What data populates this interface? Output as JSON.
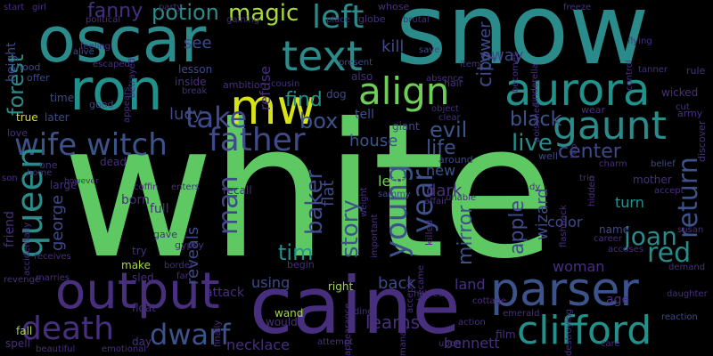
{
  "words": {
    "white": "white",
    "snow": "snow",
    "oscar": "oscar",
    "caine": "caine",
    "output": "output",
    "parser": "parser",
    "ron": "ron",
    "aurora": "aurora",
    "clifford": "clifford",
    "text": "text",
    "mw": "mw",
    "align": "align",
    "gaunt": "gaunt",
    "father": "father",
    "queen": "queen",
    "wife_witch": "wife witch",
    "death": "death",
    "dwarf": "dwarf",
    "young": "young",
    "year": "year",
    "left": "left",
    "take": "take",
    "magic": "magic",
    "fanny": "fanny",
    "potion": "potion",
    "forest": "forest",
    "baker": "baker",
    "story": "story",
    "return": "return",
    "red": "red",
    "mirror": "mirror",
    "joan": "joan",
    "tim": "tim",
    "man": "man",
    "george": "george",
    "evil": "evil",
    "black": "black",
    "life": "life",
    "live": "live",
    "center": "center",
    "apple": "apple",
    "wizard": "wizard",
    "city": "city",
    "box": "box",
    "find": "find",
    "tell": "tell",
    "kill": "kill",
    "power": "power",
    "away": "away",
    "see": "see",
    "lucy": "lucy",
    "house": "house",
    "reveals": "reveals",
    "using": "using",
    "back": "back",
    "learns": "learns",
    "bennett": "bennett",
    "necklace": "necklace",
    "woman": "woman",
    "color": "color",
    "turn": "turn",
    "land": "land",
    "leaf": "leaf",
    "dark": "dark",
    "new": "new",
    "flat": "flat",
    "friend": "friend",
    "height": "height",
    "refuse": "refuse",
    "lesson": "lesson",
    "ambition": "ambition",
    "inside": "inside",
    "also": "also",
    "cinderella": "cinderella",
    "wicked": "wicked",
    "discover": "discover",
    "mother": "mother",
    "name": "name",
    "age": "age",
    "film": "film",
    "riding": "riding",
    "attack": "attack",
    "begin": "begin",
    "born": "born",
    "full": "full",
    "large": "large",
    "dead": "dead",
    "try": "try",
    "make": "make",
    "sled": "sled",
    "wand": "wand",
    "would": "would",
    "right": "right",
    "fall": "fall",
    "spell": "spell",
    "day": "day",
    "float": "float",
    "gypsy": "gypsy",
    "gave": "gave",
    "later": "later",
    "true": "true",
    "good": "good",
    "love": "love",
    "time": "time",
    "hood": "hood",
    "offer": "offer",
    "alive": "alive",
    "escaped": "escaped",
    "betrayed": "betrayed",
    "break": "break",
    "recall": "recall",
    "dog": "dog",
    "giant": "giant",
    "killed": "killed",
    "became": "became",
    "around": "around",
    "well": "well",
    "wear": "wear",
    "army": "army",
    "rule": "rule",
    "tanner": "tanner",
    "control": "control",
    "flying": "flying",
    "freeze": "freeze",
    "item": "item",
    "hair": "hair",
    "absence": "absence",
    "save": "save",
    "globe": "globe",
    "place": "place",
    "gaining": "gaining",
    "whose": "whose",
    "brutal": "brutal",
    "party": "party",
    "political": "political",
    "girl": "girl",
    "start": "start",
    "feeling": "feeling",
    "present": "present",
    "cousin": "cousin",
    "object": "object",
    "clear": "clear",
    "poisoned": "poisoned",
    "becomes": "becomes",
    "cut": "cut",
    "charm": "charm",
    "belief": "belief",
    "accept": "accept",
    "trio": "trio",
    "top": "top",
    "hidden": "hidden",
    "flashback": "flashback",
    "enters": "enters",
    "coffin": "coffin",
    "however": "however",
    "affair": "affair",
    "unable": "unable",
    "sammy": "sammy",
    "weight": "weight",
    "important": "important",
    "helped": "helped",
    "cottage": "cottage",
    "accepts": "accepts",
    "manages": "manages",
    "upon": "upon",
    "action": "action",
    "emerald": "emerald",
    "destroying": "destroying",
    "care": "care",
    "reaction": "reaction",
    "daughter": "daughter",
    "demand": "demand",
    "accuses": "accuses",
    "career": "career",
    "susan": "susan",
    "finally": "finally",
    "appearance": "appearance",
    "attempt": "attempt",
    "emotional": "emotional",
    "beautiful": "beautiful",
    "marries": "marries",
    "revenge": "revenge",
    "receives": "receives",
    "accidentally": "accidentally",
    "border": "border",
    "far": "far",
    "home": "home",
    "one": "one",
    "son": "son",
    "appears": "appears",
    "dy": "dy"
  },
  "colors": {
    "background": "#000000",
    "green": "#5ec962",
    "teal": "#2b8a8a",
    "blue": "#3b528b",
    "purple": "#472f7d",
    "yellow": "#d8e219"
  }
}
